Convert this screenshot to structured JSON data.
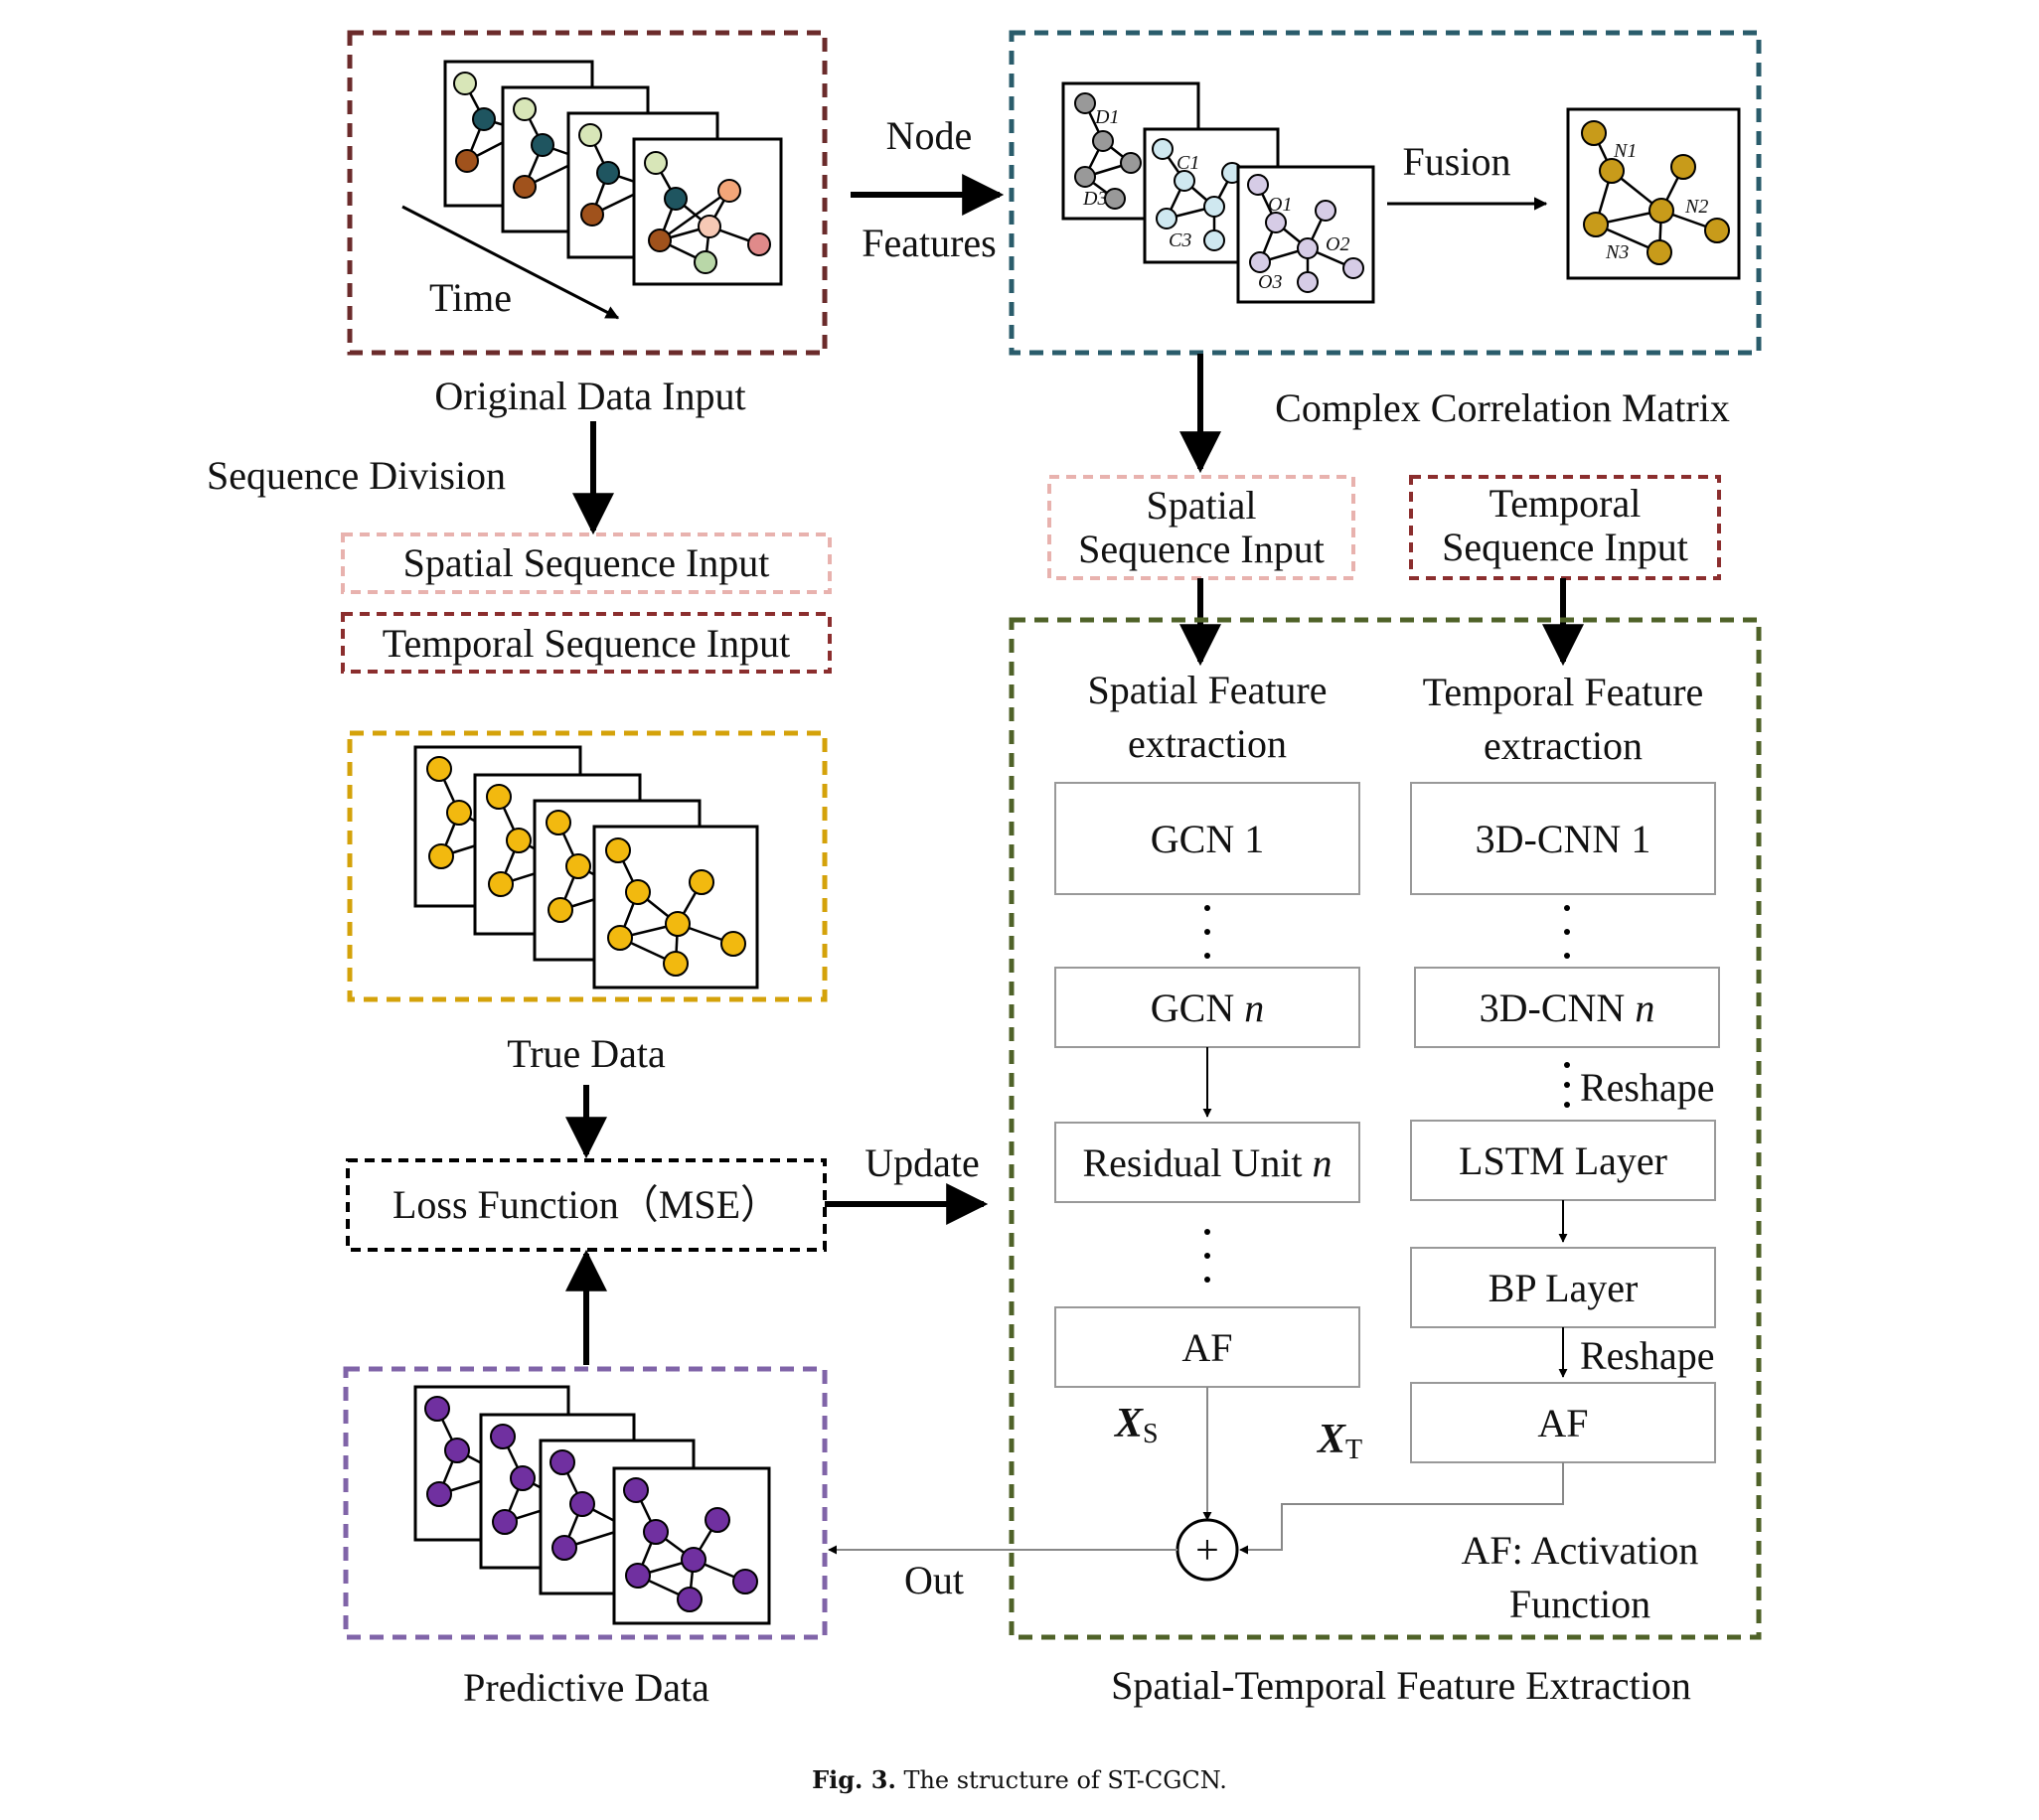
{
  "original_input": {
    "frame_color": "#6b2b2b",
    "label": "Original Data Input",
    "time_label": "Time",
    "arrow_label_top": "Node",
    "arrow_label_bottom": "Features",
    "sequence_division": "Sequence Division",
    "spatial_seq": "Spatial Sequence Input",
    "temporal_seq": "Temporal Sequence Input"
  },
  "correlation": {
    "frame_color": "#2a5c6b",
    "label": "Complex Correlation Matrix",
    "fusion": "Fusion",
    "graph1": [
      "D1",
      "D3"
    ],
    "graph2": [
      "C1",
      "C3"
    ],
    "graph3": [
      "O1",
      "O2",
      "O3"
    ],
    "fused": [
      "N1",
      "N2",
      "N3"
    ]
  },
  "inputs": {
    "spatial_line1": "Spatial",
    "spatial_line2": "Sequence Input",
    "temporal_line1": "Temporal",
    "temporal_line2": "Sequence Input"
  },
  "true_data": {
    "frame_color": "#d4a20a",
    "label": "True Data"
  },
  "loss": {
    "label": "Loss Function（MSE）",
    "update": "Update"
  },
  "predictive": {
    "frame_color": "#8064a8",
    "label": "Predictive Data",
    "out": "Out"
  },
  "extraction": {
    "frame_color": "#4f6228",
    "label": "Spatial-Temporal Feature Extraction",
    "spatial_title_1": "Spatial Feature",
    "spatial_title_2": "extraction",
    "temporal_title_1": "Temporal Feature",
    "temporal_title_2": "extraction",
    "gcn1": "GCN 1",
    "gcn_n_prefix": "GCN ",
    "n": "n",
    "residual_prefix": "Residual Unit ",
    "af": "AF",
    "cnn1": "3D-CNN 1",
    "cnn_n_prefix": "3D-CNN ",
    "reshape": "Reshape",
    "lstm": "LSTM Layer",
    "bp": "BP Layer",
    "xs_main": "X",
    "xs_sub": "S",
    "xt_main": "X",
    "xt_sub": "T",
    "plus": "+",
    "af_note_1": "AF: Activation",
    "af_note_2": "Function"
  },
  "caption": {
    "bold": "Fig. 3.",
    "text": "The structure of ST-CGCN."
  }
}
